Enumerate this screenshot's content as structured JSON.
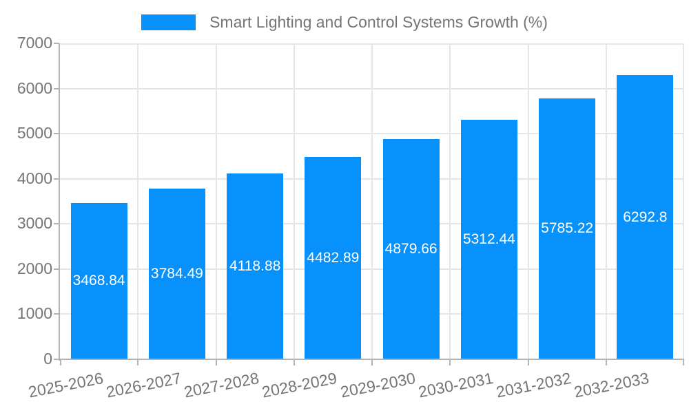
{
  "chart_data": {
    "type": "bar",
    "title": "Smart Lighting and Control Systems Growth (%)",
    "categories": [
      "2025-2026",
      "2026-2027",
      "2027-2028",
      "2028-2029",
      "2029-2030",
      "2030-2031",
      "2031-2032",
      "2032-2033"
    ],
    "values": [
      3468.84,
      3784.49,
      4118.88,
      4482.89,
      4879.66,
      5312.44,
      5785.22,
      6292.8
    ],
    "value_labels": [
      "3468.84",
      "3784.49",
      "4118.88",
      "4482.89",
      "4879.66",
      "5312.44",
      "5785.22",
      "6292.8"
    ],
    "xlabel": "",
    "ylabel": "",
    "ylim": [
      0,
      7000
    ],
    "yticks": [
      0,
      1000,
      2000,
      3000,
      4000,
      5000,
      6000,
      7000
    ],
    "ytick_labels": [
      "0",
      "1000",
      "2000",
      "3000",
      "4000",
      "5000",
      "6000",
      "7000"
    ],
    "grid": true,
    "legend_position": "top",
    "colors": {
      "bar": "#0991fb",
      "grid": "#e6e6e6",
      "axis": "#b3b3b3",
      "tick_text": "#757575",
      "data_label": "#ffffff",
      "background": "#ffffff"
    }
  }
}
